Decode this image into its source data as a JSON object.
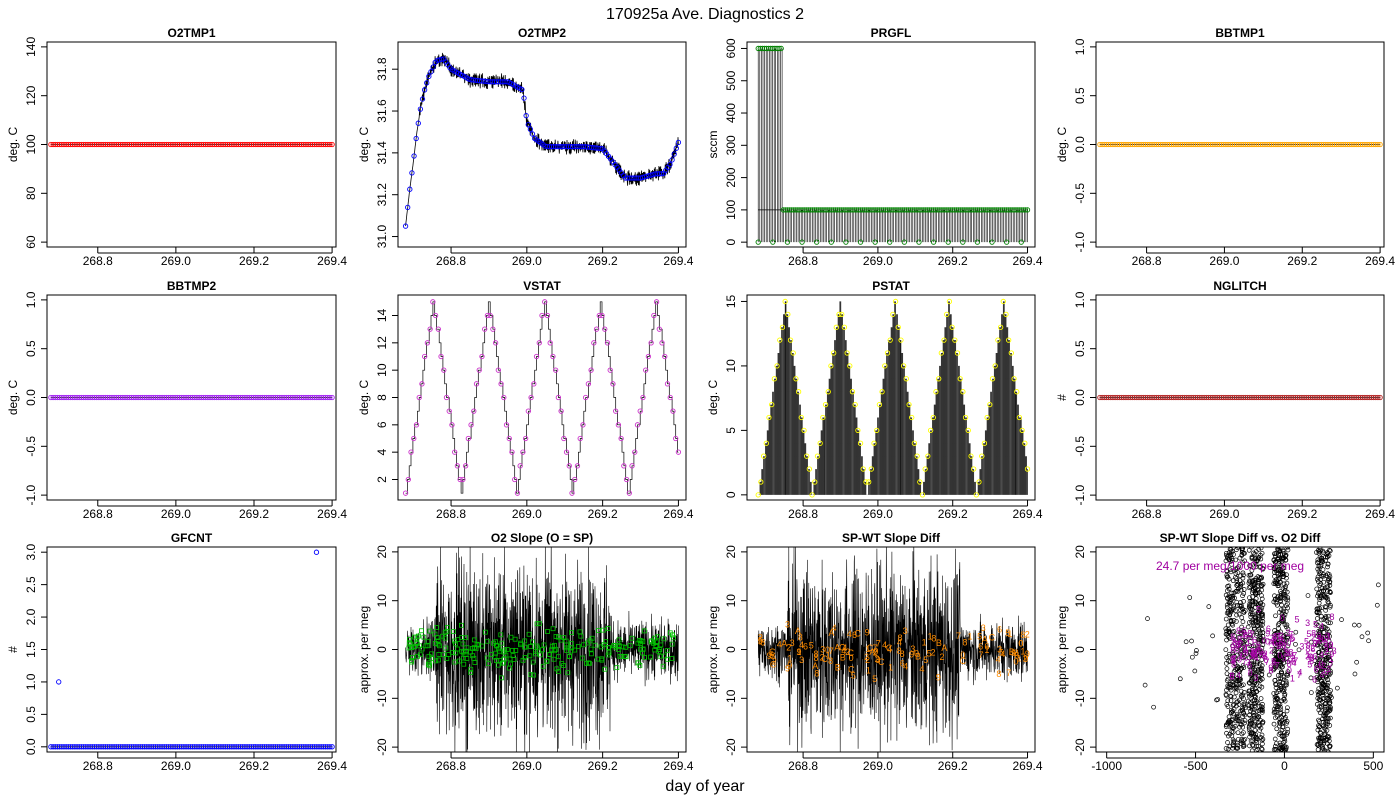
{
  "figure": {
    "title": "170925a   Ave. Diagnostics 2",
    "xlabel": "day of year"
  },
  "colors": {
    "red": "#ff0000",
    "blue": "#0000ff",
    "green": "#00c000",
    "orange": "#ffa500",
    "purple": "#a020f0",
    "brown": "#b22222",
    "magenta": "#cc33cc",
    "yellow": "#ffff00",
    "darkmagenta": "#a000a0",
    "darkgreen": "#008000",
    "orangetext": "#ff8c00"
  },
  "chart_data": [
    {
      "type": "scatter",
      "title": "O2TMP1",
      "ylabel": "deg. C",
      "xlim": [
        268.67,
        269.41
      ],
      "ylim": [
        58,
        142
      ],
      "yticks": [
        60,
        80,
        100,
        120,
        140
      ],
      "xticks": [
        268.8,
        269.0,
        269.2,
        269.4
      ],
      "series": [
        {
          "x_range": [
            268.68,
            269.4
          ],
          "count": 130,
          "values": [
            100
          ],
          "color": "red"
        }
      ]
    },
    {
      "type": "line",
      "title": "O2TMP2",
      "ylabel": "deg. C",
      "xlim": [
        268.66,
        269.42
      ],
      "ylim": [
        30.95,
        31.93
      ],
      "yticks": [
        31.0,
        31.2,
        31.4,
        31.6,
        31.8
      ],
      "xticks": [
        268.8,
        269.0,
        269.2,
        269.4
      ],
      "series": [
        {
          "x": [
            268.68,
            268.69,
            268.7,
            268.71,
            268.72,
            268.73,
            268.74,
            268.75,
            268.76,
            268.78,
            268.8,
            268.85,
            268.9,
            268.95,
            268.99,
            269.0,
            269.02,
            269.05,
            269.1,
            269.15,
            269.2,
            269.23,
            269.26,
            269.3,
            269.34,
            269.36,
            269.38,
            269.4
          ],
          "values": [
            31.05,
            31.21,
            31.35,
            31.5,
            31.62,
            31.7,
            31.76,
            31.8,
            31.84,
            31.85,
            31.8,
            31.75,
            31.74,
            31.74,
            31.7,
            31.55,
            31.47,
            31.43,
            31.43,
            31.43,
            31.42,
            31.35,
            31.28,
            31.28,
            31.3,
            31.3,
            31.35,
            31.45
          ],
          "color": "blue"
        }
      ]
    },
    {
      "type": "line",
      "title": "PRGFL",
      "ylabel": "sccm",
      "xlim": [
        268.65,
        269.42
      ],
      "ylim": [
        -15,
        620
      ],
      "yticks": [
        0,
        100,
        200,
        300,
        400,
        500,
        600
      ],
      "xticks": [
        268.8,
        269.0,
        269.2,
        269.4
      ],
      "series": [
        {
          "x_range": [
            268.68,
            269.4
          ],
          "high_until": 268.745,
          "high": 600,
          "low": 100,
          "floor": 0,
          "color": "darkgreen"
        }
      ]
    },
    {
      "type": "scatter",
      "title": "BBTMP1",
      "ylabel": "deg. C",
      "xlim": [
        268.67,
        269.41
      ],
      "ylim": [
        -1.05,
        1.05
      ],
      "yticks": [
        -1.0,
        -0.5,
        0.0,
        0.5,
        1.0
      ],
      "xticks": [
        268.8,
        269.0,
        269.2,
        269.4
      ],
      "series": [
        {
          "x_range": [
            268.68,
            269.4
          ],
          "count": 130,
          "values": [
            0
          ],
          "color": "orange"
        }
      ]
    },
    {
      "type": "scatter",
      "title": "BBTMP2",
      "ylabel": "deg. C",
      "xlim": [
        268.67,
        269.41
      ],
      "ylim": [
        -1.05,
        1.05
      ],
      "yticks": [
        -1.0,
        -0.5,
        0.0,
        0.5,
        1.0
      ],
      "xticks": [
        268.8,
        269.0,
        269.2,
        269.4
      ],
      "series": [
        {
          "x_range": [
            268.68,
            269.4
          ],
          "count": 130,
          "values": [
            0
          ],
          "color": "purple"
        }
      ]
    },
    {
      "type": "line",
      "title": "VSTAT",
      "ylabel": "deg. C",
      "xlim": [
        268.66,
        269.42
      ],
      "ylim": [
        0.5,
        15.5
      ],
      "yticks": [
        2,
        4,
        6,
        8,
        10,
        12,
        14
      ],
      "xticks": [
        268.8,
        269.0,
        269.2,
        269.4
      ],
      "series": [
        {
          "x_range": [
            268.68,
            269.4
          ],
          "period": 0.147,
          "min": 1,
          "max": 15,
          "color": "magenta"
        }
      ]
    },
    {
      "type": "line",
      "title": "PSTAT",
      "ylabel": "deg. C",
      "xlim": [
        268.65,
        269.42
      ],
      "ylim": [
        -0.4,
        15.5
      ],
      "yticks": [
        0,
        5,
        10,
        15
      ],
      "xticks": [
        268.8,
        269.0,
        269.2,
        269.4
      ],
      "series": [
        {
          "x_range": [
            268.68,
            269.4
          ],
          "period": 0.146,
          "min": 0,
          "max": 15,
          "color": "yellow"
        }
      ]
    },
    {
      "type": "scatter",
      "title": "NGLITCH",
      "ylabel": "#",
      "xlim": [
        268.67,
        269.41
      ],
      "ylim": [
        -1.05,
        1.05
      ],
      "yticks": [
        -1.0,
        -0.5,
        0.0,
        0.5,
        1.0
      ],
      "xticks": [
        268.8,
        269.0,
        269.2,
        269.4
      ],
      "series": [
        {
          "x_range": [
            268.68,
            269.4
          ],
          "count": 130,
          "values": [
            0
          ],
          "color": "brown"
        }
      ]
    },
    {
      "type": "scatter",
      "title": "GFCNT",
      "ylabel": "#",
      "xlim": [
        268.67,
        269.41
      ],
      "ylim": [
        -0.08,
        3.08
      ],
      "yticks": [
        0.0,
        0.5,
        1.0,
        1.5,
        2.0,
        2.5,
        3.0
      ],
      "xticks": [
        268.8,
        269.0,
        269.2,
        269.4
      ],
      "series": [
        {
          "x_range": [
            268.68,
            269.4
          ],
          "count": 130,
          "values": [
            0
          ],
          "color": "blue"
        }
      ],
      "outliers": [
        {
          "x": 268.7,
          "y": 1
        },
        {
          "x": 269.36,
          "y": 3
        }
      ]
    },
    {
      "type": "scatter",
      "title": "O2 Slope (O = SP)",
      "ylabel": "approx. per meg",
      "xlim": [
        268.66,
        269.42
      ],
      "ylim": [
        -21,
        21
      ],
      "yticks": [
        -20,
        -10,
        0,
        10,
        20
      ],
      "xticks": [
        268.8,
        269.0,
        269.2,
        269.4
      ],
      "series": [
        {
          "x_range": [
            268.68,
            269.4
          ],
          "count": 260,
          "spread": 8,
          "color": "green"
        }
      ]
    },
    {
      "type": "scatter",
      "title": "SP-WT Slope Diff",
      "ylabel": "approx. per meg",
      "xlim": [
        268.65,
        269.42
      ],
      "ylim": [
        -21,
        21
      ],
      "yticks": [
        -20,
        -10,
        0,
        10,
        20
      ],
      "xticks": [
        268.8,
        269.0,
        269.2,
        269.4
      ],
      "series": [
        {
          "x_range": [
            268.68,
            269.4
          ],
          "count": 130,
          "spread": 9,
          "color": "orangetext",
          "symbols": "0123456789ABC"
        }
      ]
    },
    {
      "type": "scatter",
      "title": "SP-WT Slope Diff vs. O2 Diff",
      "ylabel": "approx. per meg",
      "xlim": [
        -1060,
        560
      ],
      "ylim": [
        -21,
        21
      ],
      "yticks": [
        -20,
        -10,
        0,
        10,
        20
      ],
      "xticks": [
        -1000,
        -500,
        0,
        500
      ],
      "annotation": "24.7 per meg/1000 per meg",
      "series": [
        {
          "bands": [
            [
              -330,
              -220
            ],
            [
              -200,
              -120
            ],
            [
              -60,
              20
            ],
            [
              180,
              260
            ]
          ],
          "count": 1400,
          "color": "black"
        },
        {
          "x_range": [
            -300,
            280
          ],
          "count": 160,
          "spread": 10,
          "color": "darkmagenta"
        }
      ]
    }
  ]
}
